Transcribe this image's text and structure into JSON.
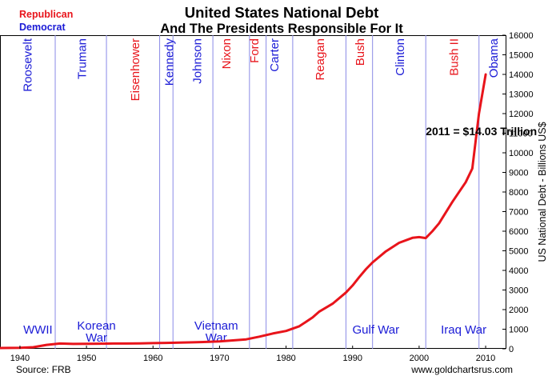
{
  "chart_data": {
    "type": "line",
    "title": "United States National Debt",
    "subtitle": "And The Presidents Responsible For It",
    "ylabel": "US National Debt - Billions US$",
    "xlim": [
      1937,
      2013
    ],
    "ylim": [
      0,
      16000
    ],
    "y_ticks": [
      0,
      1000,
      2000,
      3000,
      4000,
      5000,
      6000,
      7000,
      8000,
      9000,
      10000,
      11000,
      12000,
      13000,
      14000,
      15000,
      16000
    ],
    "x_ticks": [
      1940,
      1950,
      1960,
      1970,
      1980,
      1990,
      2000,
      2010
    ],
    "grid": false,
    "legend": {
      "position": "top-left",
      "entries": [
        {
          "label": "Republican",
          "color": "#e8141b"
        },
        {
          "label": "Democrat",
          "color": "#1b1bd6"
        }
      ]
    },
    "colors": {
      "republican": "#e8141b",
      "democrat": "#1b1bd6",
      "line": "#e8141b",
      "divider": "#8a8ae6"
    },
    "series": [
      {
        "x": [
          1937,
          1940,
          1942,
          1944,
          1946,
          1948,
          1950,
          1952,
          1954,
          1956,
          1958,
          1960,
          1962,
          1964,
          1966,
          1968,
          1970,
          1972,
          1974,
          1976,
          1978,
          1980,
          1982,
          1984,
          1985,
          1987,
          1989,
          1990,
          1991,
          1992,
          1993,
          1995,
          1997,
          1999,
          2000,
          2001,
          2002,
          2003,
          2005,
          2007,
          2008,
          2009,
          2010
        ],
        "values": [
          40,
          50,
          80,
          200,
          270,
          250,
          255,
          260,
          270,
          270,
          275,
          290,
          300,
          315,
          330,
          350,
          380,
          430,
          480,
          620,
          780,
          910,
          1150,
          1600,
          1900,
          2300,
          2870,
          3230,
          3660,
          4060,
          4410,
          4970,
          5410,
          5660,
          5700,
          5650,
          6000,
          6400,
          7500,
          8500,
          9200,
          12000,
          14000
        ]
      }
    ],
    "presidents": [
      {
        "name": "Roosevelt",
        "party": "democrat",
        "x": 1941
      },
      {
        "name": "Truman",
        "party": "democrat",
        "x": 1949.2
      },
      {
        "name": "Eisenhower",
        "party": "republican",
        "x": 1957.2
      },
      {
        "name": "Kennedy",
        "party": "democrat",
        "x": 1962.3
      },
      {
        "name": "Johnson",
        "party": "democrat",
        "x": 1966.5
      },
      {
        "name": "Nixon",
        "party": "republican",
        "x": 1970.9
      },
      {
        "name": "Ford",
        "party": "republican",
        "x": 1975.1
      },
      {
        "name": "Carter",
        "party": "democrat",
        "x": 1978.1
      },
      {
        "name": "Reagan",
        "party": "republican",
        "x": 1985.0
      },
      {
        "name": "Bush",
        "party": "republican",
        "x": 1991.0
      },
      {
        "name": "Clinton",
        "party": "democrat",
        "x": 1997.0
      },
      {
        "name": "Bush II",
        "party": "republican",
        "x": 2005.1
      },
      {
        "name": "Obama",
        "party": "democrat",
        "x": 2011.1
      }
    ],
    "term_dividers": [
      1945.3,
      1953,
      1961,
      1963,
      1969,
      1974.5,
      1977,
      1981,
      1989,
      1993,
      2001,
      2009
    ],
    "wars": [
      {
        "lines": [
          "WWII"
        ],
        "x": 1942.7
      },
      {
        "lines": [
          "Korean",
          "War"
        ],
        "x": 1951.5
      },
      {
        "lines": [
          "Vietnam",
          "War"
        ],
        "x": 1969.5
      },
      {
        "lines": [
          "Gulf War"
        ],
        "x": 1993.5
      },
      {
        "lines": [
          "Iraq War"
        ],
        "x": 2006.7
      }
    ],
    "annotation": {
      "text": "2011 = $14.03 Trillion",
      "x": 2001,
      "y": 10900
    },
    "source": "Source: FRB",
    "credit": "www.goldchartsrus.com"
  }
}
